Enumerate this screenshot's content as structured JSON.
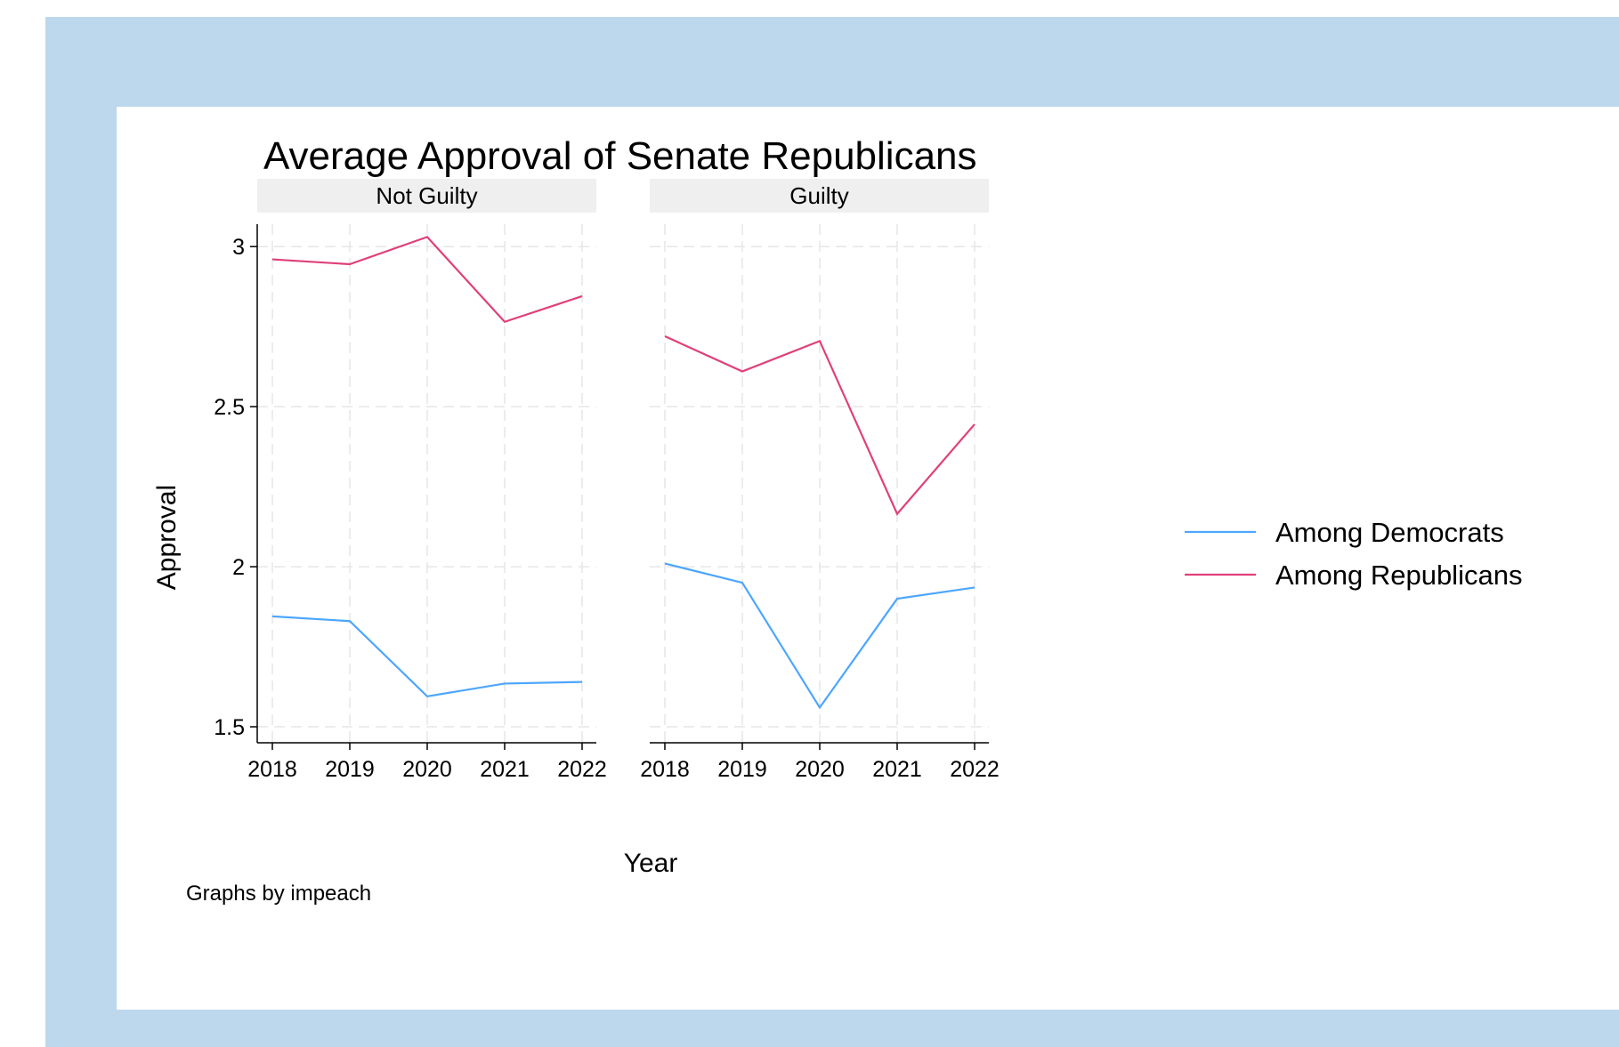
{
  "chart_data": {
    "type": "line",
    "title": "Average Approval of Senate Republicans",
    "xlabel": "Year",
    "ylabel": "Approval",
    "note": "Graphs by impeach",
    "ylim": [
      1.45,
      3.07
    ],
    "yticks": [
      1.5,
      2,
      2.5,
      3
    ],
    "ytick_labels": [
      "1.5",
      "2",
      "2.5",
      "3"
    ],
    "x": [
      2018,
      2019,
      2020,
      2021,
      2022
    ],
    "grid": true,
    "legend_position": "right",
    "panels": [
      {
        "title": "Not Guilty",
        "series": [
          {
            "name": "Among Democrats",
            "color": "#4da6ff",
            "values": [
              1.845,
              1.83,
              1.595,
              1.635,
              1.64
            ]
          },
          {
            "name": "Among Republicans",
            "color": "#e0407a",
            "values": [
              2.96,
              2.945,
              3.03,
              2.765,
              2.845
            ]
          }
        ]
      },
      {
        "title": "Guilty",
        "series": [
          {
            "name": "Among Democrats",
            "color": "#4da6ff",
            "values": [
              2.01,
              1.95,
              1.56,
              1.9,
              1.935
            ]
          },
          {
            "name": "Among Republicans",
            "color": "#e0407a",
            "values": [
              2.72,
              2.61,
              2.705,
              2.165,
              2.445
            ]
          }
        ]
      }
    ],
    "legend": [
      {
        "name": "Among Democrats",
        "color": "#4da6ff"
      },
      {
        "name": "Among Republicans",
        "color": "#e0407a"
      }
    ]
  }
}
